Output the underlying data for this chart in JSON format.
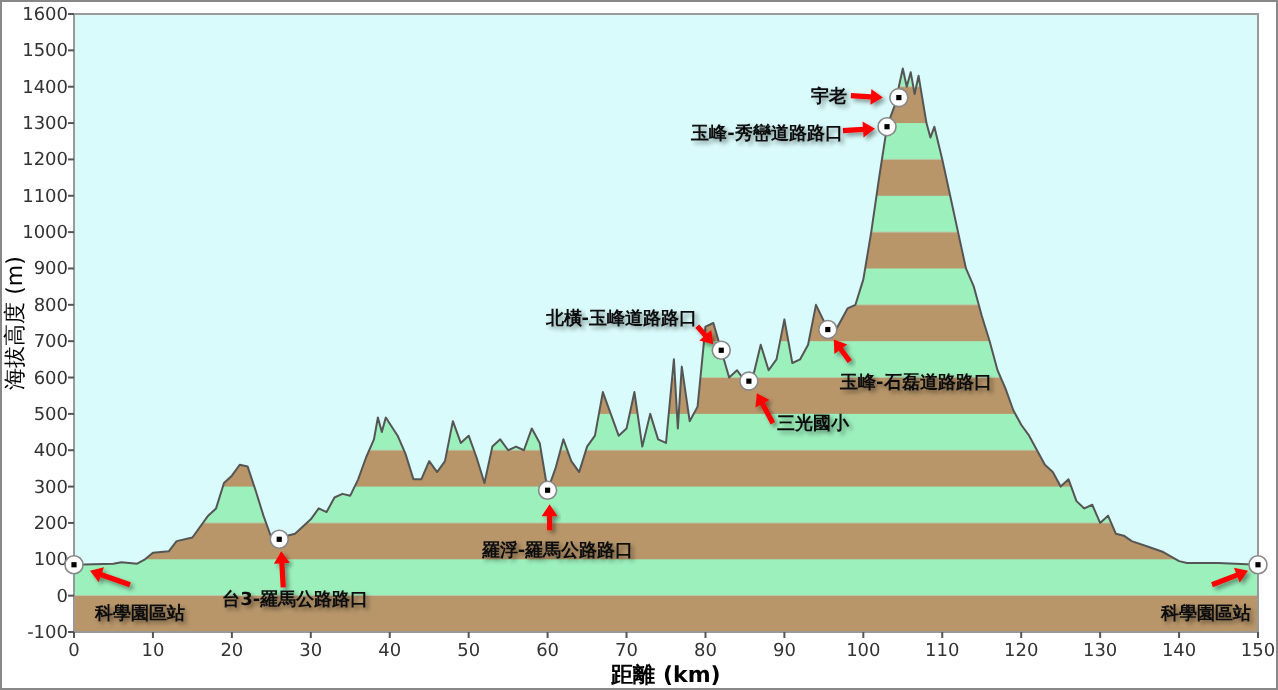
{
  "chart_data": {
    "type": "area",
    "xlabel": "距離 (km)",
    "ylabel": "海拔高度 (m)",
    "xlim": [
      0,
      150
    ],
    "ylim": [
      -100,
      1600
    ],
    "xticks": [
      0,
      10,
      20,
      30,
      40,
      50,
      60,
      70,
      80,
      90,
      100,
      110,
      120,
      130,
      140,
      150
    ],
    "yticks": [
      -100,
      0,
      100,
      200,
      300,
      400,
      500,
      600,
      700,
      800,
      900,
      1000,
      1100,
      1200,
      1300,
      1400,
      1500,
      1600
    ],
    "grid": false,
    "series": [
      {
        "color": "#9cf0bc",
        "x": [
          0,
          5,
          6,
          8,
          9,
          10,
          12,
          13,
          15,
          17,
          18,
          19,
          20,
          21,
          22,
          23,
          24,
          25,
          26,
          27,
          28,
          30,
          31,
          32,
          33,
          34,
          35,
          36,
          37,
          38,
          38.5,
          39,
          39.5,
          41,
          42,
          43,
          44,
          45,
          46,
          47,
          48,
          49,
          50,
          51,
          52,
          53,
          54,
          55,
          56,
          57,
          58,
          59,
          60,
          61,
          62,
          63,
          64,
          65,
          66,
          67,
          68,
          69,
          70,
          71,
          72,
          73,
          74,
          75,
          76,
          76.5,
          77,
          78,
          79,
          80,
          81,
          83,
          84,
          85,
          86,
          87,
          88,
          89,
          90,
          91,
          92,
          93,
          94,
          96,
          97,
          98,
          99,
          100,
          101,
          102,
          103,
          104,
          105,
          105.5,
          106,
          106.5,
          107,
          108,
          108.5,
          109,
          110,
          111,
          112,
          113,
          114,
          115,
          116,
          117,
          118,
          119,
          120,
          121,
          122,
          123,
          124,
          125,
          126,
          127,
          128,
          129,
          130,
          131,
          132,
          133,
          134,
          136,
          138,
          140,
          141,
          145,
          150
        ],
        "values": [
          85,
          88,
          92,
          88,
          100,
          118,
          122,
          150,
          160,
          220,
          240,
          310,
          330,
          360,
          355,
          290,
          220,
          160,
          155,
          165,
          170,
          210,
          240,
          230,
          270,
          280,
          275,
          320,
          380,
          430,
          490,
          450,
          490,
          440,
          390,
          320,
          320,
          370,
          340,
          370,
          480,
          420,
          440,
          380,
          310,
          410,
          430,
          400,
          410,
          400,
          460,
          420,
          290,
          350,
          430,
          370,
          340,
          410,
          440,
          560,
          500,
          440,
          460,
          560,
          410,
          500,
          430,
          420,
          650,
          460,
          630,
          480,
          520,
          740,
          750,
          600,
          620,
          590,
          600,
          690,
          620,
          650,
          760,
          640,
          650,
          690,
          800,
          710,
          750,
          790,
          800,
          870,
          1000,
          1150,
          1290,
          1350,
          1450,
          1400,
          1440,
          1380,
          1430,
          1300,
          1260,
          1290,
          1200,
          1100,
          1000,
          900,
          850,
          770,
          700,
          620,
          570,
          510,
          470,
          440,
          400,
          360,
          340,
          300,
          320,
          260,
          240,
          250,
          200,
          220,
          170,
          165,
          150,
          135,
          120,
          95,
          90,
          90,
          85
        ]
      }
    ],
    "annotations": [
      {
        "text": "科學園區站",
        "x": 0,
        "y": 85
      },
      {
        "text": "台3-羅馬公路路口",
        "x": 26,
        "y": 155
      },
      {
        "text": "羅浮-羅馬公路路口",
        "x": 60,
        "y": 290
      },
      {
        "text": "北橫-玉峰道路路口",
        "x": 82,
        "y": 675
      },
      {
        "text": "三光國小",
        "x": 85.5,
        "y": 590
      },
      {
        "text": "玉峰-石磊道路路口",
        "x": 95.5,
        "y": 732
      },
      {
        "text": "玉峰-秀巒道路路口",
        "x": 103,
        "y": 1290
      },
      {
        "text": "宇老",
        "x": 104.5,
        "y": 1370
      },
      {
        "text": "科學園區站",
        "x": 150,
        "y": 85
      }
    ]
  }
}
